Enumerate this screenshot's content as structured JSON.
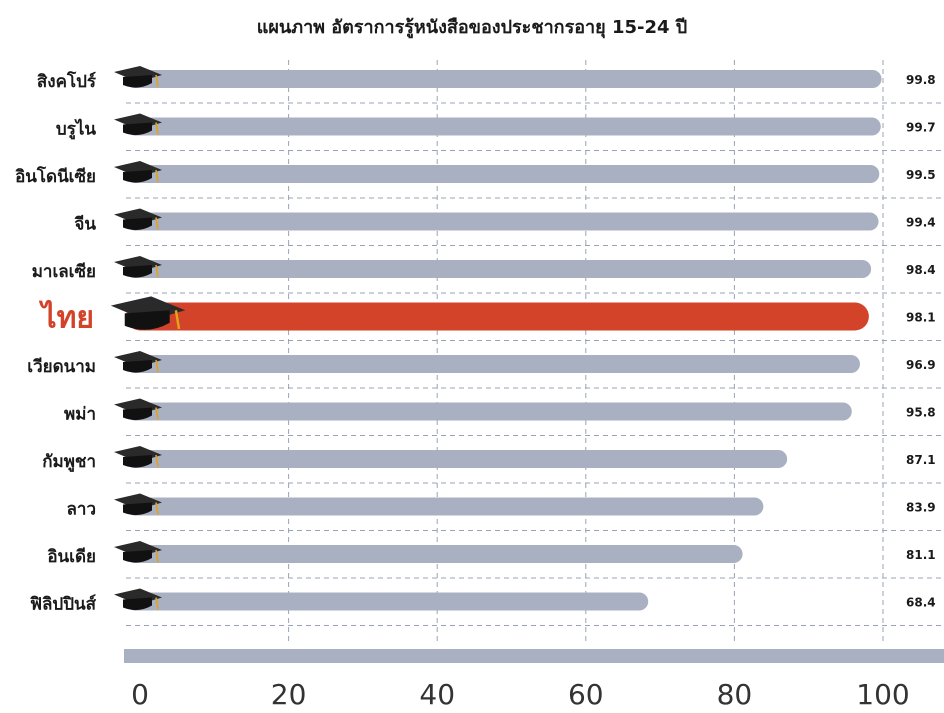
{
  "chart_data": {
    "type": "bar",
    "orientation": "horizontal",
    "title": "แผนภาพ   อัตราการรู้หนังสือของประชากรอายุ 15-24 ปี",
    "categories": [
      "สิงคโปร์",
      "บรูไน",
      "อินโดนีเซีย",
      "จีน",
      "มาเลเซีย",
      "ไทย",
      "เวียดนาม",
      "พม่า",
      "กัมพูชา",
      "ลาว",
      "อินเดีย",
      "ฟิลิปปินส์"
    ],
    "values": [
      99.8,
      99.7,
      99.5,
      99.4,
      98.4,
      98.1,
      96.9,
      95.8,
      87.1,
      83.9,
      81.1,
      68.4
    ],
    "highlight": "ไทย",
    "xlim": [
      0,
      100
    ],
    "xticks": [
      0,
      20,
      40,
      60,
      80,
      100
    ],
    "grid": true,
    "icon": "graduation-cap-icon",
    "colors": {
      "bar": "#a8b0c2",
      "highlight_bar": "#d2432a",
      "highlight_label": "#d2432a",
      "label": "#1a1a1a",
      "grid": "#9aa3b5",
      "cap": "#2a2a2a",
      "tassel": "#e3a21a"
    }
  }
}
